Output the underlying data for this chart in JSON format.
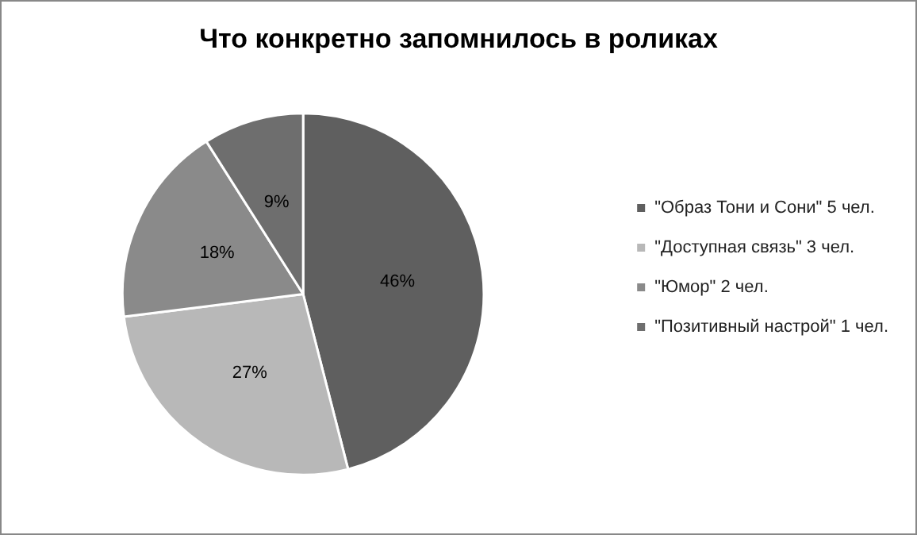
{
  "chart_data": {
    "type": "pie",
    "title": "Что конкретно запомнилось в роликах",
    "categories": [
      "\"Образ Тони и Сони\" 5 чел.",
      "\"Доступная связь\" 3 чел.",
      "\"Юмор\" 2 чел.",
      "\"Позитивный настрой\" 1 чел."
    ],
    "values": [
      46,
      27,
      18,
      9
    ],
    "value_labels": [
      "46%",
      "27%",
      "18%",
      "9%"
    ],
    "colors": [
      "#5f5f5f",
      "#b8b8b8",
      "#8a8a8a",
      "#6e6e6e"
    ],
    "legend": "right"
  }
}
